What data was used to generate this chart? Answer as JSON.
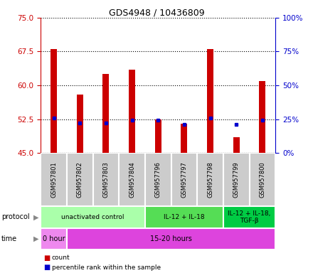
{
  "title": "GDS4948 / 10436809",
  "samples": [
    "GSM957801",
    "GSM957802",
    "GSM957803",
    "GSM957804",
    "GSM957796",
    "GSM957797",
    "GSM957798",
    "GSM957799",
    "GSM957800"
  ],
  "count_values": [
    68.0,
    58.0,
    62.5,
    63.5,
    52.5,
    51.5,
    68.0,
    48.5,
    61.0
  ],
  "percentile_values": [
    26.0,
    22.0,
    22.0,
    24.0,
    24.0,
    21.0,
    26.0,
    21.0,
    24.0
  ],
  "y_min": 45,
  "y_max": 75,
  "y_ticks": [
    45,
    52.5,
    60,
    67.5,
    75
  ],
  "y2_ticks": [
    0,
    25,
    50,
    75,
    100
  ],
  "bar_color": "#cc0000",
  "dot_color": "#0000cc",
  "protocol_groups": [
    {
      "label": "unactivated control",
      "start": 0,
      "end": 4,
      "color": "#aaffaa"
    },
    {
      "label": "IL-12 + IL-18",
      "start": 4,
      "end": 7,
      "color": "#55dd55"
    },
    {
      "label": "IL-12 + IL-18,\nTGF-β",
      "start": 7,
      "end": 9,
      "color": "#00cc44"
    }
  ],
  "time_groups": [
    {
      "label": "0 hour",
      "start": 0,
      "end": 1,
      "color": "#ee88ee"
    },
    {
      "label": "15-20 hours",
      "start": 1,
      "end": 9,
      "color": "#dd44dd"
    }
  ],
  "bg_color": "#ffffff",
  "left_color": "#cc0000",
  "right_color": "#0000cc",
  "sample_bg": "#cccccc",
  "bar_width": 0.25
}
